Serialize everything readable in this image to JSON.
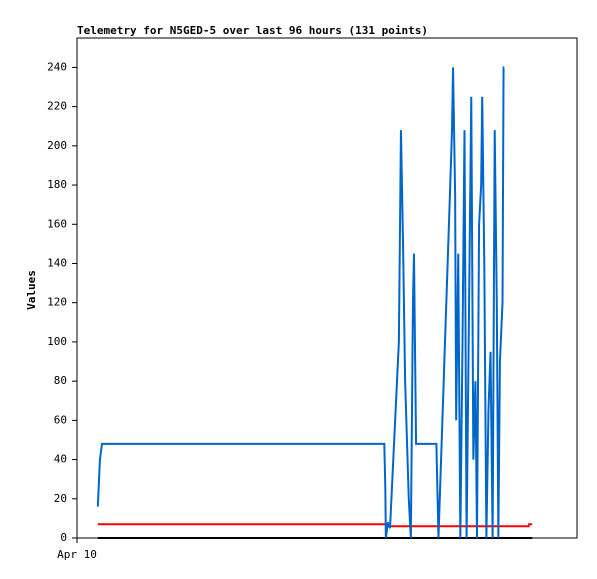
{
  "chart_data": {
    "type": "line",
    "title": "Telemetry for N5GED-5 over last 96 hours (131 points)",
    "y_label": "Values",
    "xlim": [
      0,
      96
    ],
    "xticks": [
      {
        "value": 0,
        "label": "Apr 10"
      }
    ],
    "ylim": [
      0,
      255
    ],
    "yticks": [
      0,
      20,
      40,
      60,
      80,
      100,
      120,
      140,
      160,
      180,
      200,
      220,
      240
    ],
    "series": [
      {
        "color": "#000000",
        "x": [
          4.0,
          87.4
        ],
        "values": [
          0,
          0
        ]
      },
      {
        "color": "#ff0000",
        "x": [
          4.0,
          59.5,
          59.6,
          86.7,
          86.8,
          87.4
        ],
        "values": [
          7,
          7,
          6,
          6,
          7,
          7
        ]
      },
      {
        "color": "#0066cc",
        "x": [
          4.0,
          4.4,
          4.8,
          59.0,
          59.2,
          59.3,
          59.7,
          60.1,
          61.8,
          62.2,
          62.6,
          63.0,
          63.7,
          64.1,
          64.5,
          64.7,
          65.1,
          69.0,
          69.4,
          71.6,
          72.0,
          72.2,
          72.6,
          72.8,
          73.2,
          73.6,
          74.0,
          74.4,
          74.8,
          75.2,
          75.7,
          76.1,
          76.5,
          76.8,
          77.2,
          77.6,
          77.8,
          78.2,
          78.6,
          79.0,
          79.4,
          79.8,
          80.2,
          80.6,
          80.9,
          81.2,
          81.7,
          81.9,
          82.0
        ],
        "values": [
          16,
          40,
          48,
          48,
          25,
          0,
          8,
          5,
          100,
          208,
          150,
          80,
          20,
          0,
          120,
          145,
          48,
          48,
          0,
          175,
          208,
          240,
          175,
          60,
          145,
          0,
          95,
          208,
          0,
          100,
          225,
          40,
          80,
          0,
          160,
          180,
          225,
          140,
          0,
          65,
          95,
          0,
          208,
          120,
          0,
          90,
          120,
          240,
          240
        ]
      }
    ]
  }
}
